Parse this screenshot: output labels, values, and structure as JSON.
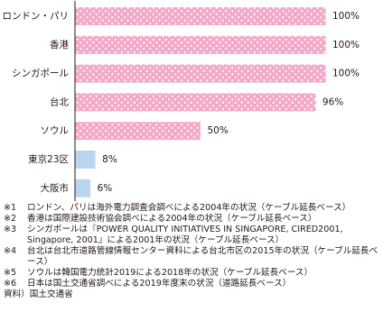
{
  "chart_data": {
    "type": "bar",
    "orientation": "horizontal",
    "categories": [
      "ロンドン・パリ",
      "香港",
      "シンガポール",
      "台北",
      "ソウル",
      "東京23区",
      "大阪市"
    ],
    "values": [
      100,
      100,
      100,
      96,
      50,
      8,
      6
    ],
    "value_labels": [
      "100%",
      "100%",
      "100%",
      "96%",
      "50%",
      "8%",
      "6%"
    ],
    "colors": [
      "#f3a8c5",
      "#f3a8c5",
      "#f3a8c5",
      "#f3a8c5",
      "#f3a8c5",
      "#bcd5ef",
      "#bcd5ef"
    ],
    "dot_pattern": [
      true,
      true,
      true,
      true,
      true,
      false,
      false
    ]
  },
  "notes": [
    {
      "mark": "※1",
      "text": "ロンドン、パリは海外電力調査会調べによる2004年の状況（ケーブル延長ベース）"
    },
    {
      "mark": "※2",
      "text": "香港は国際建設技術協会調べによる2004年の状況（ケーブル延長ベース）"
    },
    {
      "mark": "※3",
      "text": "シンガポールは『POWER QUALITY INITIATIVES IN SINGAPORE, CIRED2001, Singapore, 2001』による2001年の状況（ケーブル延長ベース）"
    },
    {
      "mark": "※4",
      "text": "台北は台北市道路管線情報センター資料による台北市区の2015年の状況（ケーブル延長ベース）"
    },
    {
      "mark": "※5",
      "text": "ソウルは韓国電力統計2019による2018年の状況（ケーブル延長ベース）"
    },
    {
      "mark": "※6",
      "text": "日本は国土交通省調べによる2019年度末の状況（道路延長ベース）"
    }
  ],
  "source": "資料）国土交通省"
}
